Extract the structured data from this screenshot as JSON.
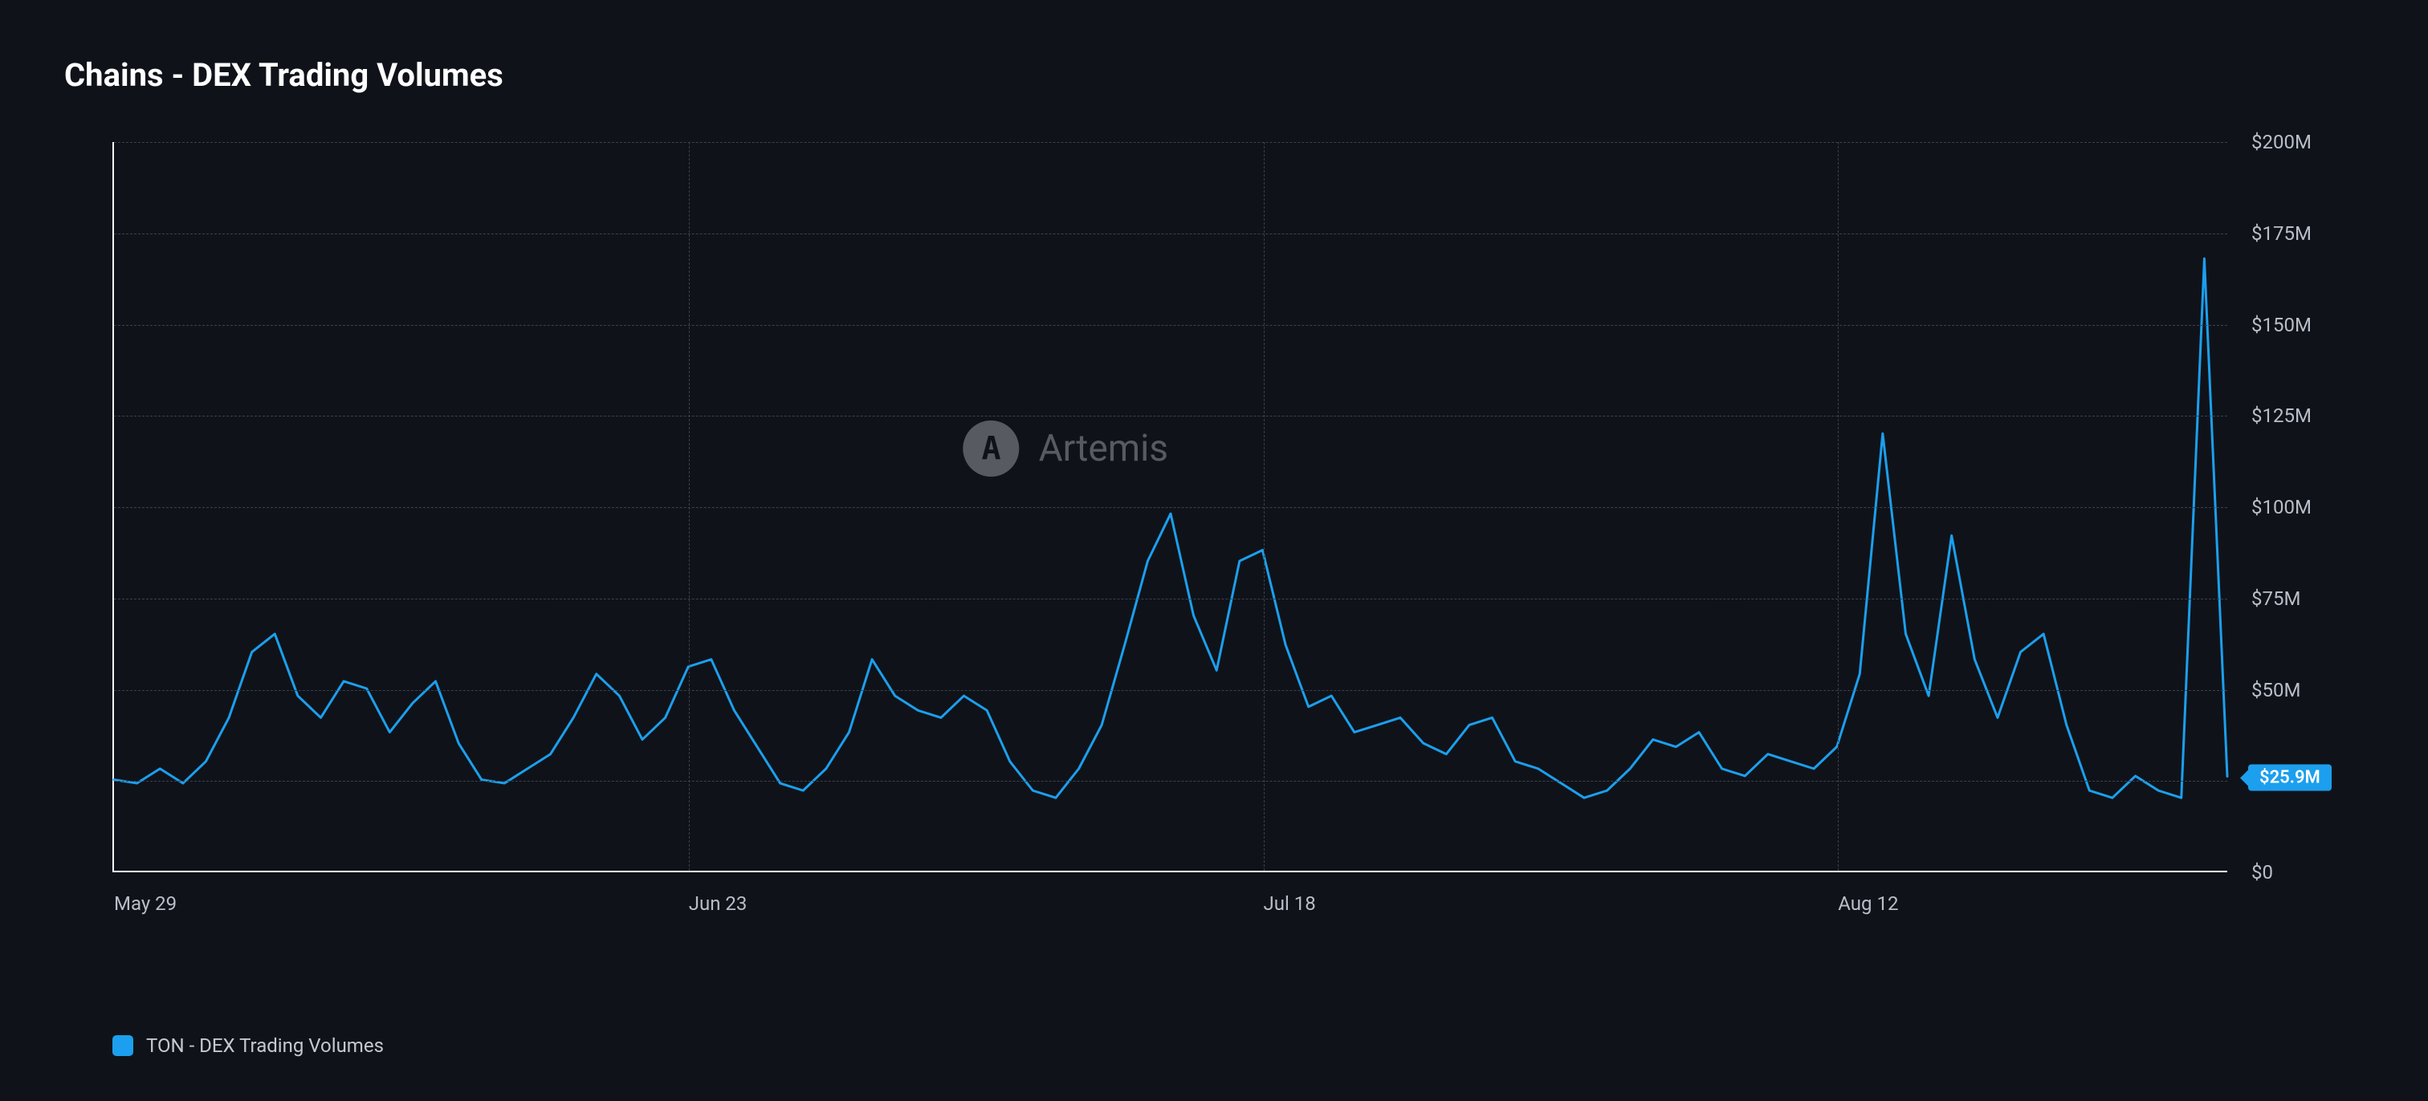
{
  "title": "Chains - DEX Trading Volumes",
  "chart": {
    "type": "line",
    "background_color": "#0f1319",
    "grid_color": "#3a4050",
    "axis_color": "#ffffff",
    "tick_label_color": "#b8bec9",
    "tick_fontsize": 24,
    "line_color": "#1c9fee",
    "line_width": 3,
    "ylim": [
      0,
      200
    ],
    "y_unit_suffix": "M",
    "y_unit_prefix": "$",
    "y_ticks": [
      0,
      25,
      50,
      75,
      100,
      125,
      150,
      175,
      200
    ],
    "y_tick_labels": [
      "$0",
      "$25M",
      "$50M",
      "$75M",
      "$100M",
      "$125M",
      "$150M",
      "$175M",
      "$200M"
    ],
    "x_tick_positions": [
      0,
      25,
      50,
      75
    ],
    "x_tick_labels": [
      "May 29",
      "Jun 23",
      "Jul 18",
      "Aug 12"
    ],
    "n_points": 93,
    "values": [
      25,
      24,
      28,
      24,
      30,
      42,
      60,
      65,
      48,
      42,
      52,
      50,
      38,
      46,
      52,
      35,
      25,
      24,
      28,
      32,
      42,
      54,
      48,
      36,
      42,
      56,
      58,
      44,
      34,
      24,
      22,
      28,
      38,
      58,
      48,
      44,
      42,
      48,
      44,
      30,
      22,
      20,
      28,
      40,
      62,
      85,
      98,
      70,
      55,
      85,
      88,
      62,
      45,
      48,
      38,
      40,
      42,
      35,
      32,
      40,
      42,
      30,
      28,
      24,
      20,
      22,
      28,
      36,
      34,
      38,
      28,
      26,
      32,
      30,
      28,
      34,
      54,
      120,
      65,
      48,
      92,
      58,
      42,
      60,
      65,
      40,
      22,
      20,
      26,
      22,
      20,
      168,
      25.9
    ],
    "current_value_label": "$25.9M",
    "current_badge_bg": "#1c9fee",
    "current_badge_text_color": "#ffffff"
  },
  "legend": {
    "swatch_color": "#1c9fee",
    "label": "TON - DEX Trading Volumes",
    "label_color": "#c3c8d1",
    "fontsize": 24
  },
  "watermark": {
    "text": "Artemis",
    "logo_bg": "#aeb2ba",
    "logo_glyph": "A",
    "text_color": "#aeb2ba",
    "opacity": 0.45
  }
}
